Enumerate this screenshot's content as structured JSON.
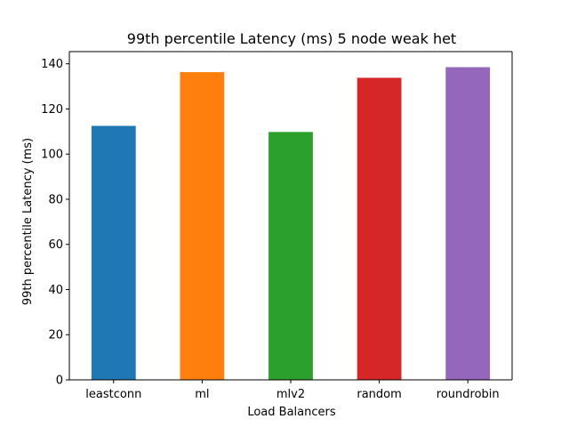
{
  "chart_data": {
    "type": "bar",
    "title": "99th percentile Latency (ms) 5 node weak het",
    "xlabel": "Load Balancers",
    "ylabel": "99th percentile Latency (ms)",
    "categories": [
      "leastconn",
      "ml",
      "mlv2",
      "random",
      "roundrobin"
    ],
    "values": [
      112.5,
      136.3,
      109.8,
      133.8,
      138.5
    ],
    "colors": [
      "#1f77b4",
      "#ff7f0e",
      "#2ca02c",
      "#d62728",
      "#9467bd"
    ],
    "ylim": [
      0,
      145.4
    ],
    "yticks": [
      0,
      20,
      40,
      60,
      80,
      100,
      120,
      140
    ],
    "grid": false,
    "legend": "none"
  }
}
